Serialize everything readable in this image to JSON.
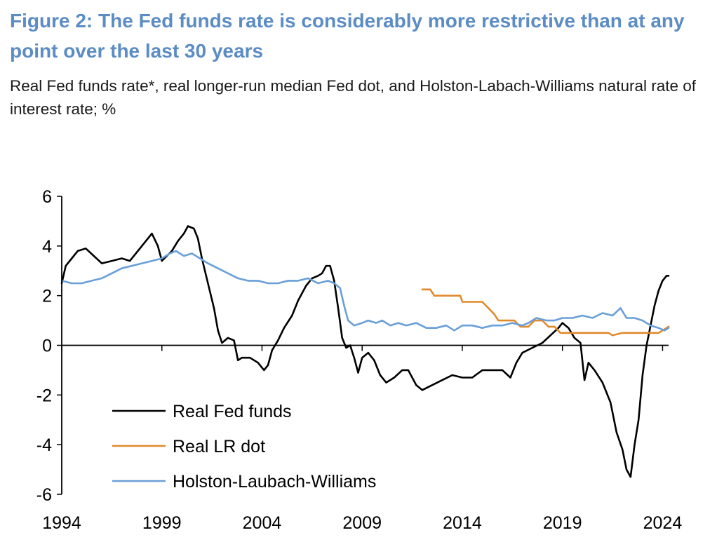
{
  "title": "Figure 2: The Fed funds rate is considerably more restrictive than at any point over the last 30 years",
  "subtitle": "Real Fed funds rate*, real longer-run median Fed dot, and Holston-Labach-Williams natural rate of interest rate; %",
  "chart_data": {
    "type": "line",
    "title": "Figure 2: The Fed funds rate is considerably more restrictive than at any point over the last 30 years",
    "subtitle": "Real Fed funds rate*, real longer-run median Fed dot, and Holston-Labach-Williams natural rate of interest rate; %",
    "xlabel": "",
    "ylabel": "",
    "xlim": [
      1994,
      2024.3
    ],
    "ylim": [
      -6,
      6
    ],
    "x_ticks": [
      "1994",
      "1999",
      "2004",
      "2009",
      "2014",
      "2019",
      "2024"
    ],
    "y_ticks": [
      "-6",
      "-4",
      "-2",
      "0",
      "2",
      "4",
      "6"
    ],
    "grid": false,
    "legend": "bottom-left",
    "series": [
      {
        "name": "Real Fed funds",
        "color": "#000000",
        "points": [
          [
            1994.0,
            2.5
          ],
          [
            1994.2,
            3.2
          ],
          [
            1994.5,
            3.5
          ],
          [
            1994.8,
            3.8
          ],
          [
            1995.2,
            3.9
          ],
          [
            1995.6,
            3.6
          ],
          [
            1996.0,
            3.3
          ],
          [
            1996.5,
            3.4
          ],
          [
            1997.0,
            3.5
          ],
          [
            1997.4,
            3.4
          ],
          [
            1997.8,
            3.8
          ],
          [
            1998.2,
            4.2
          ],
          [
            1998.5,
            4.5
          ],
          [
            1998.8,
            4.0
          ],
          [
            1999.0,
            3.4
          ],
          [
            1999.5,
            3.8
          ],
          [
            1999.8,
            4.2
          ],
          [
            2000.1,
            4.5
          ],
          [
            2000.3,
            4.8
          ],
          [
            2000.6,
            4.7
          ],
          [
            2000.8,
            4.3
          ],
          [
            2001.0,
            3.5
          ],
          [
            2001.3,
            2.5
          ],
          [
            2001.6,
            1.5
          ],
          [
            2001.8,
            0.6
          ],
          [
            2002.0,
            0.1
          ],
          [
            2002.3,
            0.3
          ],
          [
            2002.6,
            0.2
          ],
          [
            2002.8,
            -0.6
          ],
          [
            2003.0,
            -0.5
          ],
          [
            2003.4,
            -0.5
          ],
          [
            2003.8,
            -0.7
          ],
          [
            2004.1,
            -1.0
          ],
          [
            2004.3,
            -0.8
          ],
          [
            2004.5,
            -0.2
          ],
          [
            2004.8,
            0.2
          ],
          [
            2005.1,
            0.7
          ],
          [
            2005.5,
            1.2
          ],
          [
            2005.8,
            1.8
          ],
          [
            2006.2,
            2.4
          ],
          [
            2006.5,
            2.7
          ],
          [
            2006.8,
            2.8
          ],
          [
            2007.0,
            2.9
          ],
          [
            2007.2,
            3.2
          ],
          [
            2007.4,
            3.2
          ],
          [
            2007.6,
            2.6
          ],
          [
            2007.8,
            1.5
          ],
          [
            2008.0,
            0.3
          ],
          [
            2008.2,
            -0.1
          ],
          [
            2008.4,
            0.0
          ],
          [
            2008.6,
            -0.5
          ],
          [
            2008.8,
            -1.1
          ],
          [
            2009.0,
            -0.5
          ],
          [
            2009.3,
            -0.3
          ],
          [
            2009.6,
            -0.6
          ],
          [
            2009.9,
            -1.2
          ],
          [
            2010.2,
            -1.5
          ],
          [
            2010.6,
            -1.3
          ],
          [
            2011.0,
            -1.0
          ],
          [
            2011.3,
            -1.0
          ],
          [
            2011.7,
            -1.6
          ],
          [
            2012.0,
            -1.8
          ],
          [
            2012.5,
            -1.6
          ],
          [
            2013.0,
            -1.4
          ],
          [
            2013.5,
            -1.2
          ],
          [
            2014.0,
            -1.3
          ],
          [
            2014.5,
            -1.3
          ],
          [
            2015.0,
            -1.0
          ],
          [
            2015.5,
            -1.0
          ],
          [
            2016.0,
            -1.0
          ],
          [
            2016.4,
            -1.3
          ],
          [
            2016.7,
            -0.7
          ],
          [
            2017.0,
            -0.3
          ],
          [
            2017.5,
            -0.1
          ],
          [
            2018.0,
            0.1
          ],
          [
            2018.4,
            0.4
          ],
          [
            2018.8,
            0.7
          ],
          [
            2019.0,
            0.9
          ],
          [
            2019.3,
            0.7
          ],
          [
            2019.6,
            0.3
          ],
          [
            2019.9,
            0.1
          ],
          [
            2020.1,
            -1.4
          ],
          [
            2020.3,
            -0.7
          ],
          [
            2020.6,
            -1.0
          ],
          [
            2021.0,
            -1.5
          ],
          [
            2021.4,
            -2.3
          ],
          [
            2021.7,
            -3.5
          ],
          [
            2022.0,
            -4.2
          ],
          [
            2022.2,
            -5.0
          ],
          [
            2022.4,
            -5.3
          ],
          [
            2022.6,
            -4.0
          ],
          [
            2022.8,
            -3.0
          ],
          [
            2023.0,
            -1.2
          ],
          [
            2023.2,
            0.0
          ],
          [
            2023.4,
            0.8
          ],
          [
            2023.6,
            1.6
          ],
          [
            2023.8,
            2.2
          ],
          [
            2024.0,
            2.6
          ],
          [
            2024.2,
            2.8
          ],
          [
            2024.3,
            2.8
          ]
        ]
      },
      {
        "name": "Real LR dot",
        "color": "#e08a2c",
        "points": [
          [
            2012.0,
            2.25
          ],
          [
            2012.4,
            2.25
          ],
          [
            2012.6,
            2.0
          ],
          [
            2013.9,
            2.0
          ],
          [
            2014.0,
            1.75
          ],
          [
            2015.0,
            1.75
          ],
          [
            2015.3,
            1.5
          ],
          [
            2015.6,
            1.25
          ],
          [
            2015.8,
            1.0
          ],
          [
            2016.6,
            1.0
          ],
          [
            2016.9,
            0.75
          ],
          [
            2017.3,
            0.75
          ],
          [
            2017.6,
            1.0
          ],
          [
            2018.0,
            1.0
          ],
          [
            2018.3,
            0.75
          ],
          [
            2018.6,
            0.75
          ],
          [
            2018.9,
            0.5
          ],
          [
            2021.3,
            0.5
          ],
          [
            2021.5,
            0.4
          ],
          [
            2022.0,
            0.5
          ],
          [
            2023.5,
            0.5
          ],
          [
            2023.8,
            0.5
          ],
          [
            2024.0,
            0.6
          ],
          [
            2024.3,
            0.75
          ]
        ]
      },
      {
        "name": "Holston-Laubach-Williams",
        "color": "#6a9fd8",
        "points": [
          [
            1994.0,
            2.6
          ],
          [
            1994.5,
            2.5
          ],
          [
            1995.0,
            2.5
          ],
          [
            1995.5,
            2.6
          ],
          [
            1996.0,
            2.7
          ],
          [
            1996.5,
            2.9
          ],
          [
            1997.0,
            3.1
          ],
          [
            1997.5,
            3.2
          ],
          [
            1998.0,
            3.3
          ],
          [
            1998.5,
            3.4
          ],
          [
            1999.0,
            3.5
          ],
          [
            1999.4,
            3.7
          ],
          [
            1999.7,
            3.8
          ],
          [
            2000.1,
            3.6
          ],
          [
            2000.5,
            3.7
          ],
          [
            2000.9,
            3.5
          ],
          [
            2001.3,
            3.3
          ],
          [
            2001.8,
            3.1
          ],
          [
            2002.3,
            2.9
          ],
          [
            2002.8,
            2.7
          ],
          [
            2003.3,
            2.6
          ],
          [
            2003.8,
            2.6
          ],
          [
            2004.3,
            2.5
          ],
          [
            2004.8,
            2.5
          ],
          [
            2005.3,
            2.6
          ],
          [
            2005.8,
            2.6
          ],
          [
            2006.3,
            2.7
          ],
          [
            2006.8,
            2.5
          ],
          [
            2007.3,
            2.6
          ],
          [
            2007.6,
            2.5
          ],
          [
            2007.9,
            2.3
          ],
          [
            2008.1,
            1.6
          ],
          [
            2008.3,
            1.0
          ],
          [
            2008.6,
            0.8
          ],
          [
            2009.0,
            0.9
          ],
          [
            2009.3,
            1.0
          ],
          [
            2009.7,
            0.9
          ],
          [
            2010.0,
            1.0
          ],
          [
            2010.4,
            0.8
          ],
          [
            2010.8,
            0.9
          ],
          [
            2011.2,
            0.8
          ],
          [
            2011.7,
            0.9
          ],
          [
            2012.2,
            0.7
          ],
          [
            2012.7,
            0.7
          ],
          [
            2013.2,
            0.8
          ],
          [
            2013.6,
            0.6
          ],
          [
            2014.0,
            0.8
          ],
          [
            2014.5,
            0.8
          ],
          [
            2015.0,
            0.7
          ],
          [
            2015.5,
            0.8
          ],
          [
            2016.0,
            0.8
          ],
          [
            2016.5,
            0.9
          ],
          [
            2017.0,
            0.8
          ],
          [
            2017.3,
            0.9
          ],
          [
            2017.7,
            1.1
          ],
          [
            2018.2,
            1.0
          ],
          [
            2018.6,
            1.0
          ],
          [
            2019.0,
            1.1
          ],
          [
            2019.5,
            1.1
          ],
          [
            2020.0,
            1.2
          ],
          [
            2020.5,
            1.1
          ],
          [
            2021.0,
            1.3
          ],
          [
            2021.5,
            1.2
          ],
          [
            2021.9,
            1.5
          ],
          [
            2022.2,
            1.1
          ],
          [
            2022.6,
            1.1
          ],
          [
            2023.0,
            1.0
          ],
          [
            2023.4,
            0.8
          ],
          [
            2023.8,
            0.7
          ],
          [
            2024.1,
            0.6
          ],
          [
            2024.3,
            0.7
          ]
        ]
      }
    ]
  },
  "colors": {
    "title": "#5b8cc4",
    "axis": "#000000"
  }
}
